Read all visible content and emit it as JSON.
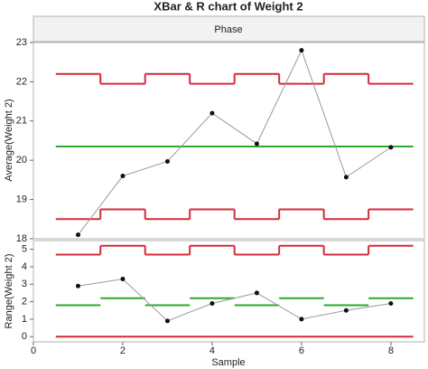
{
  "chart_data": [
    {
      "type": "line",
      "title": "XBar & R chart of Weight 2",
      "phase_label": "Phase",
      "ylabel": "Average(Weight 2)",
      "x": [
        1,
        2,
        3,
        4,
        5,
        6,
        7,
        8
      ],
      "values": [
        18.1,
        19.6,
        19.97,
        21.2,
        20.42,
        22.8,
        19.57,
        20.33
      ],
      "center": 20.35,
      "ucl": [
        22.2,
        21.95,
        22.2,
        21.95,
        22.2,
        21.95,
        22.2,
        21.95
      ],
      "lcl": [
        18.5,
        18.75,
        18.5,
        18.75,
        18.5,
        18.75,
        18.5,
        18.75
      ],
      "xlim": [
        0,
        8.75
      ],
      "ylim": [
        18,
        23
      ],
      "yticks": [
        18,
        19,
        20,
        21,
        22,
        23
      ],
      "color": "#999999",
      "limit_color": "#d22c3c",
      "center_color": "#2ea82e"
    },
    {
      "type": "line",
      "ylabel": "Range(Weight 2)",
      "xlabel": "Sample",
      "x": [
        1,
        2,
        3,
        4,
        5,
        6,
        7,
        8
      ],
      "values": [
        2.9,
        3.3,
        0.9,
        1.9,
        2.5,
        1.0,
        1.5,
        1.9
      ],
      "center": [
        1.8,
        2.2,
        1.8,
        2.2,
        1.8,
        2.2,
        1.8,
        2.2
      ],
      "ucl": [
        4.7,
        5.2,
        4.7,
        5.2,
        4.7,
        5.2,
        4.7,
        5.2
      ],
      "lcl": 0,
      "xlim": [
        0,
        8.75
      ],
      "ylim": [
        -0.3,
        5.5
      ],
      "xticks": [
        0,
        2,
        4,
        6,
        8
      ],
      "yticks": [
        0,
        1,
        2,
        3,
        4,
        5
      ],
      "color": "#999999",
      "limit_color": "#d22c3c",
      "center_color": "#2ea82e"
    }
  ]
}
